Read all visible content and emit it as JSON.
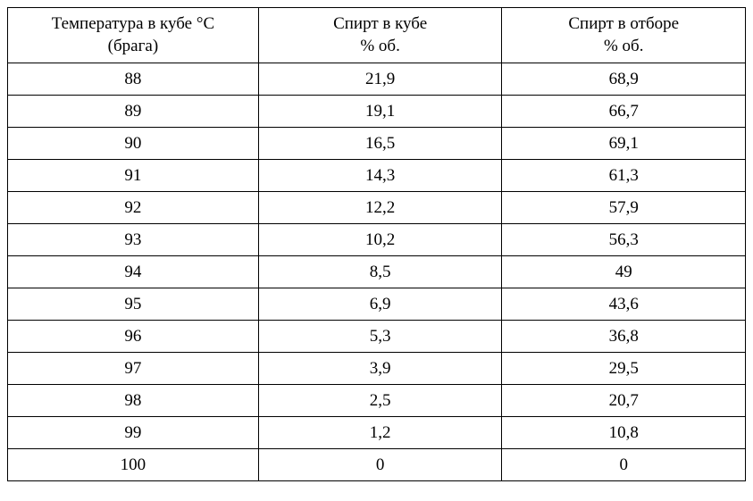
{
  "table": {
    "type": "table",
    "columns": [
      {
        "line1": "Температура в кубе °С",
        "line2": "(брага)",
        "width_pct": 34,
        "align": "center"
      },
      {
        "line1": "Спирт в кубе",
        "line2": "% об.",
        "width_pct": 33,
        "align": "center"
      },
      {
        "line1": "Спирт в отборе",
        "line2": "% об.",
        "width_pct": 33,
        "align": "center"
      }
    ],
    "rows": [
      [
        "88",
        "21,9",
        "68,9"
      ],
      [
        "89",
        "19,1",
        "66,7"
      ],
      [
        "90",
        "16,5",
        "69,1"
      ],
      [
        "91",
        "14,3",
        "61,3"
      ],
      [
        "92",
        "12,2",
        "57,9"
      ],
      [
        "93",
        "10,2",
        "56,3"
      ],
      [
        "94",
        "8,5",
        "49"
      ],
      [
        "95",
        "6,9",
        "43,6"
      ],
      [
        "96",
        "5,3",
        "36,8"
      ],
      [
        "97",
        "3,9",
        "29,5"
      ],
      [
        "98",
        "2,5",
        "20,7"
      ],
      [
        "99",
        "1,2",
        "10,8"
      ],
      [
        "100",
        "0",
        "0"
      ]
    ],
    "border_color": "#000000",
    "background_color": "#ffffff",
    "font_family": "Times New Roman",
    "font_size_pt": 14,
    "text_color": "#000000"
  }
}
